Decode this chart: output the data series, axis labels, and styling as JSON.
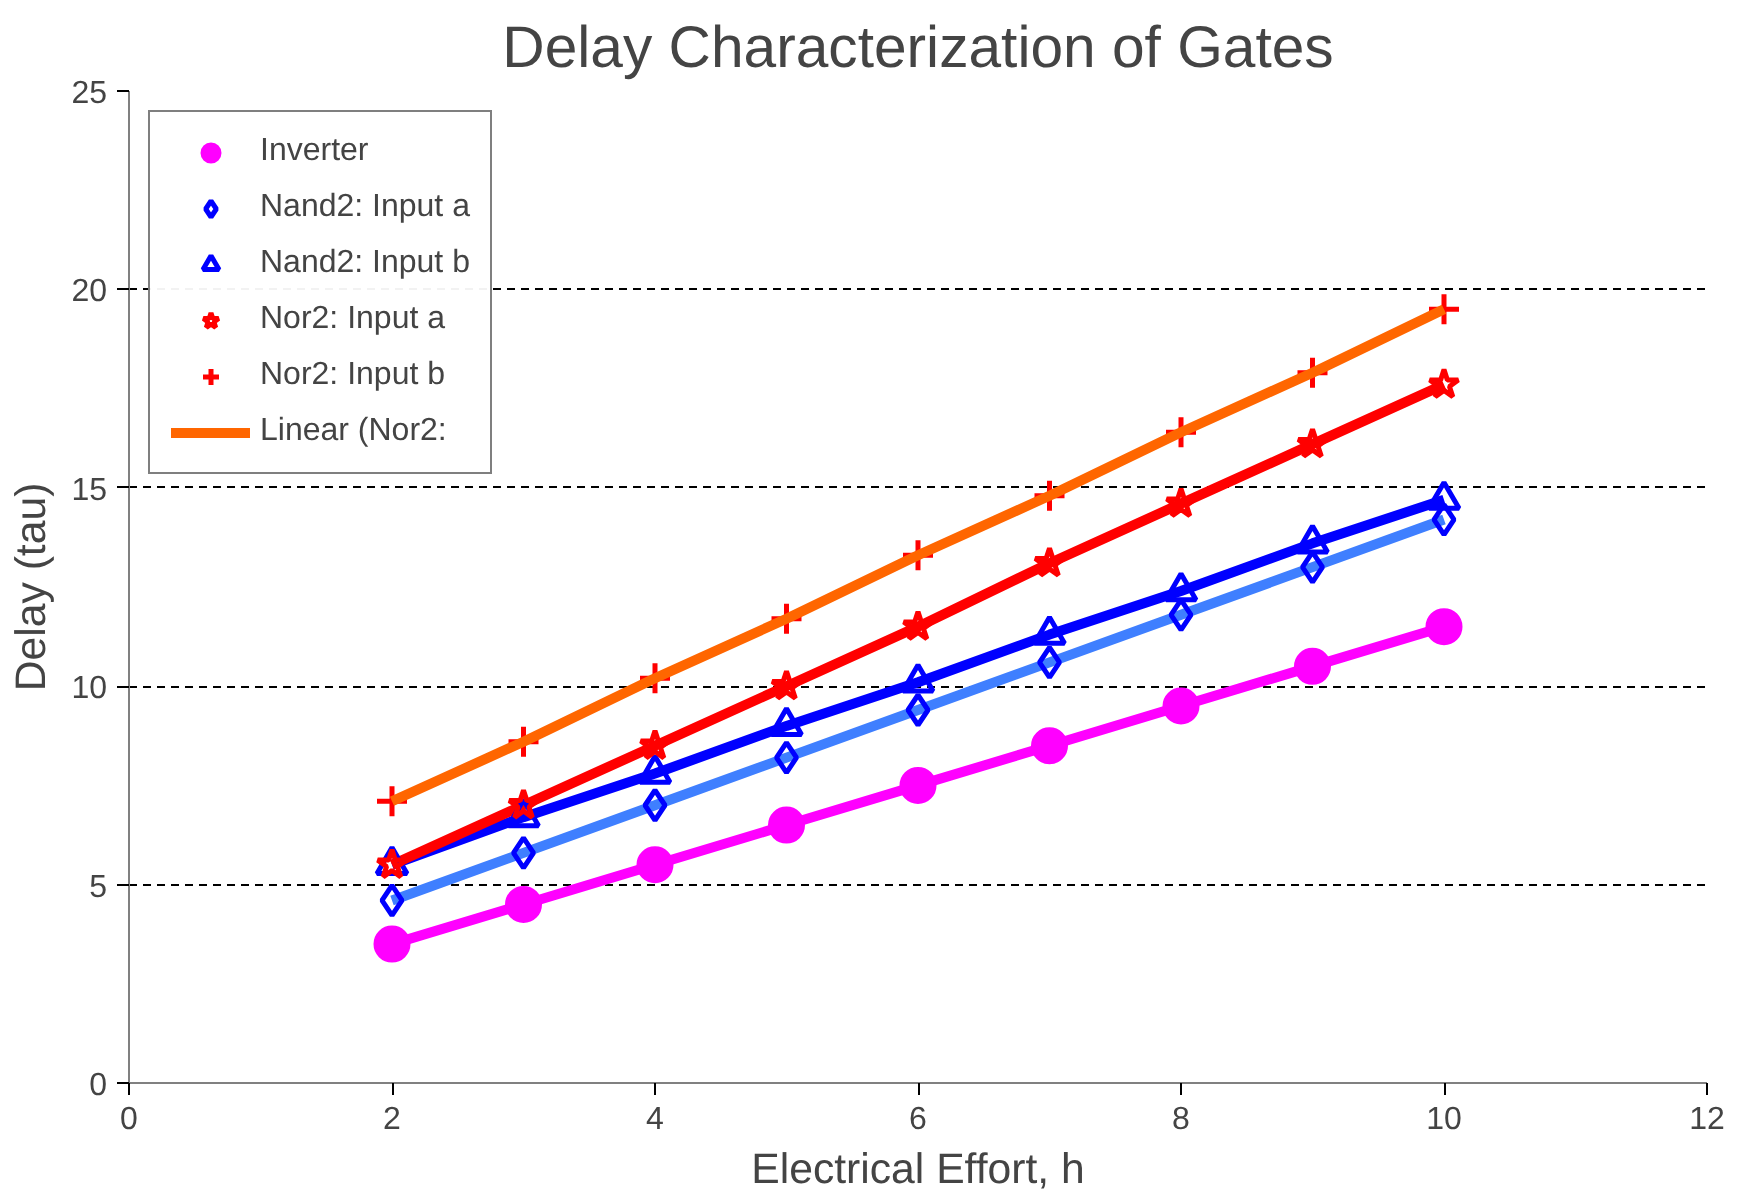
{
  "chart_data": {
    "type": "scatter",
    "title": "Delay Characterization of Gates",
    "xlabel": "Electrical Effort, h",
    "ylabel": "Delay (tau)",
    "x": [
      2,
      3,
      4,
      5,
      6,
      7,
      8,
      9,
      10
    ],
    "xlim": [
      0,
      12
    ],
    "xticks": [
      0,
      2,
      4,
      6,
      8,
      10,
      12
    ],
    "ylim": [
      0,
      25
    ],
    "yticks": [
      0,
      5,
      10,
      15,
      20,
      25
    ],
    "grid": "y",
    "legend": "top left",
    "series": [
      {
        "type": "line",
        "color": "#ff00ff",
        "values": [
          3.5,
          4.5,
          5.5,
          6.5,
          7.5,
          8.5,
          9.5,
          10.5,
          11.5
        ],
        "marker": "none"
      },
      {
        "type": "line",
        "color": "#3f7fff",
        "values": [
          4.6,
          5.8,
          7.0,
          8.2,
          9.4,
          10.6,
          11.8,
          13.0,
          14.2
        ],
        "marker": "none"
      },
      {
        "type": "line",
        "color": "#0000ff",
        "values": [
          5.5,
          6.7,
          7.8,
          9.0,
          10.1,
          11.3,
          12.4,
          13.6,
          14.7
        ],
        "marker": "none"
      },
      {
        "type": "line",
        "color": "#ff0000",
        "values": [
          5.5,
          7.0,
          8.5,
          10.0,
          11.5,
          13.1,
          14.6,
          16.1,
          17.6
        ],
        "marker": "none"
      },
      {
        "name": "Inverter",
        "color": "#ff00ff",
        "marker": "circle",
        "values": [
          3.5,
          4.5,
          5.5,
          6.5,
          7.5,
          8.5,
          9.5,
          10.5,
          11.5
        ]
      },
      {
        "name": "Nand2: Input a",
        "color": "#0000ff",
        "marker": "diamond",
        "values": [
          4.6,
          5.8,
          7.0,
          8.2,
          9.4,
          10.6,
          11.8,
          13.0,
          14.2
        ]
      },
      {
        "name": "Nand2: Input b",
        "color": "#0000ff",
        "marker": "triangle",
        "values": [
          5.5,
          6.7,
          7.8,
          9.0,
          10.1,
          11.3,
          12.4,
          13.6,
          14.7
        ]
      },
      {
        "name": "Nor2: Input a",
        "color": "#ff0000",
        "marker": "star",
        "values": [
          5.5,
          7.0,
          8.5,
          10.0,
          11.5,
          13.1,
          14.6,
          16.1,
          17.6
        ]
      },
      {
        "name": "Nor2: Input b",
        "color": "#ff0000",
        "marker": "cross",
        "values": [
          7.1,
          8.6,
          10.2,
          11.7,
          13.3,
          14.8,
          16.4,
          17.9,
          19.5
        ]
      },
      {
        "name": "Linear (Nor2:",
        "type": "line",
        "color": "#ff6600",
        "values": [
          7.1,
          8.6,
          10.2,
          11.7,
          13.3,
          14.8,
          16.4,
          17.9,
          19.5
        ],
        "marker": "none"
      }
    ]
  }
}
